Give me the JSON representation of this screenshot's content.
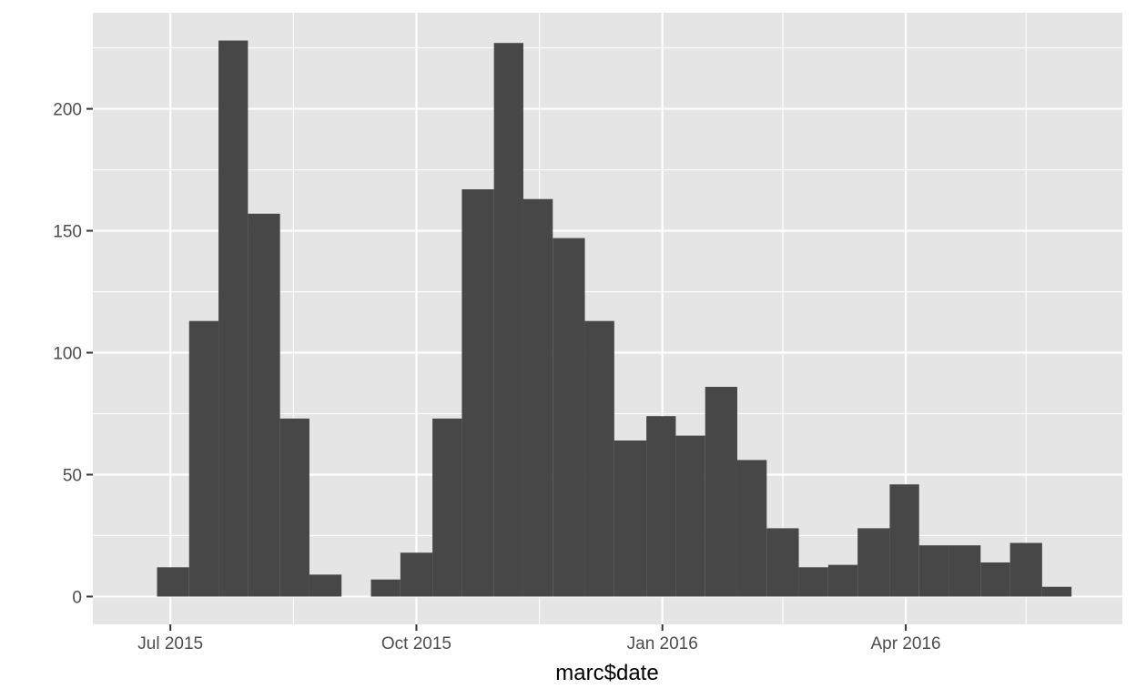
{
  "chart_data": {
    "type": "bar",
    "title": "",
    "xlabel": "marc$date",
    "ylabel": "",
    "x_tick_labels": [
      "Jul 2015",
      "Oct 2015",
      "Jan 2016",
      "Apr 2016"
    ],
    "x_ticks": [
      "2015-07-01",
      "2015-10-01",
      "2016-01-01",
      "2016-04-01"
    ],
    "x_minor_ticks": [
      "2015-08-16",
      "2015-11-16",
      "2016-02-15",
      "2016-05-16"
    ],
    "xlim": [
      "2015-06-02",
      "2016-06-21"
    ],
    "y_ticks": [
      0,
      50,
      100,
      150,
      200
    ],
    "ylim": [
      -11.4,
      239.4
    ],
    "grid": true,
    "colors": {
      "bar": "#474747",
      "panel": "#e5e5e5",
      "grid": "#ffffff",
      "background": "#ffffff"
    },
    "bins": [
      {
        "start": "2015-06-26",
        "end": "2015-07-08",
        "count": 12
      },
      {
        "start": "2015-07-08",
        "end": "2015-07-19",
        "count": 113
      },
      {
        "start": "2015-07-19",
        "end": "2015-07-30",
        "count": 228
      },
      {
        "start": "2015-07-30",
        "end": "2015-08-11",
        "count": 157
      },
      {
        "start": "2015-08-11",
        "end": "2015-08-22",
        "count": 73
      },
      {
        "start": "2015-08-22",
        "end": "2015-09-03",
        "count": 9
      },
      {
        "start": "2015-09-03",
        "end": "2015-09-14",
        "count": 0
      },
      {
        "start": "2015-09-14",
        "end": "2015-09-25",
        "count": 7
      },
      {
        "start": "2015-09-25",
        "end": "2015-10-07",
        "count": 18
      },
      {
        "start": "2015-10-07",
        "end": "2015-10-18",
        "count": 73
      },
      {
        "start": "2015-10-18",
        "end": "2015-10-30",
        "count": 167
      },
      {
        "start": "2015-10-30",
        "end": "2015-11-10",
        "count": 227
      },
      {
        "start": "2015-11-10",
        "end": "2015-11-21",
        "count": 163
      },
      {
        "start": "2015-11-21",
        "end": "2015-12-03",
        "count": 147
      },
      {
        "start": "2015-12-03",
        "end": "2015-12-14",
        "count": 113
      },
      {
        "start": "2015-12-14",
        "end": "2015-12-26",
        "count": 64
      },
      {
        "start": "2015-12-26",
        "end": "2016-01-06",
        "count": 74
      },
      {
        "start": "2016-01-06",
        "end": "2016-01-17",
        "count": 66
      },
      {
        "start": "2016-01-17",
        "end": "2016-01-29",
        "count": 86
      },
      {
        "start": "2016-01-29",
        "end": "2016-02-09",
        "count": 56
      },
      {
        "start": "2016-02-09",
        "end": "2016-02-21",
        "count": 28
      },
      {
        "start": "2016-02-21",
        "end": "2016-03-03",
        "count": 12
      },
      {
        "start": "2016-03-03",
        "end": "2016-03-14",
        "count": 13
      },
      {
        "start": "2016-03-14",
        "end": "2016-03-26",
        "count": 28
      },
      {
        "start": "2016-03-26",
        "end": "2016-04-06",
        "count": 46
      },
      {
        "start": "2016-04-06",
        "end": "2016-04-17",
        "count": 21
      },
      {
        "start": "2016-04-17",
        "end": "2016-04-29",
        "count": 21
      },
      {
        "start": "2016-04-29",
        "end": "2016-05-10",
        "count": 14
      },
      {
        "start": "2016-05-10",
        "end": "2016-05-22",
        "count": 22
      },
      {
        "start": "2016-05-22",
        "end": "2016-06-02",
        "count": 4
      }
    ]
  }
}
